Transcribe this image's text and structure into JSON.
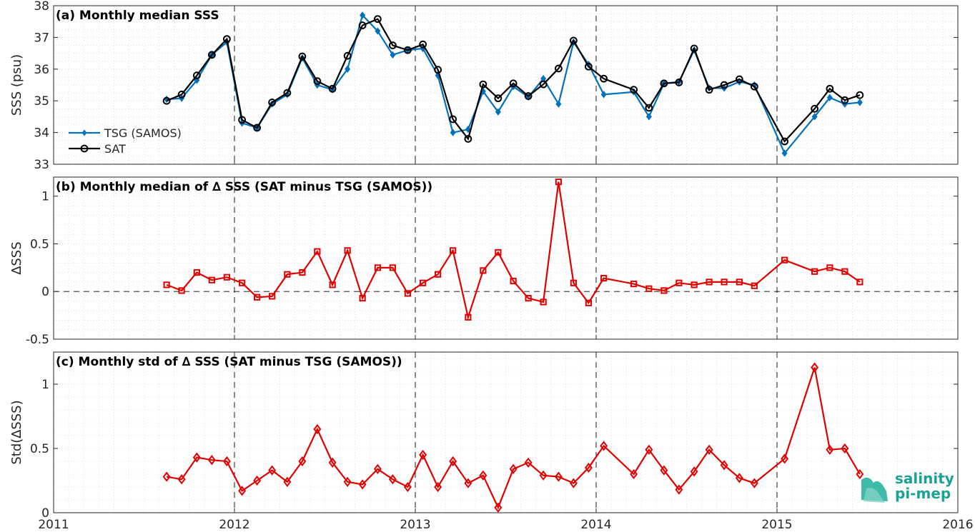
{
  "colors": {
    "tsg": "#0072bd",
    "sat": "#000000",
    "delta": "#e00000",
    "logo": "#1aa394"
  },
  "logo": {
    "line1": "salinity",
    "line2": "pi-mep"
  },
  "chart_data": [
    {
      "type": "line",
      "title": "(a) Monthly median SSS",
      "ylabel": "SSS (psu)",
      "xlim": [
        2011,
        2016
      ],
      "ylim": [
        33,
        38
      ],
      "yticks": [
        "33",
        "34",
        "35",
        "36",
        "37",
        "38"
      ],
      "xticks": [
        "2011",
        "2012",
        "2013",
        "2014",
        "2015",
        "2016"
      ],
      "grid": true,
      "legend_position": "lower-left",
      "x": [
        2011.625,
        2011.708,
        2011.792,
        2011.875,
        2011.958,
        2012.042,
        2012.125,
        2012.208,
        2012.292,
        2012.375,
        2012.458,
        2012.542,
        2012.625,
        2012.708,
        2012.792,
        2012.875,
        2012.958,
        2013.042,
        2013.125,
        2013.208,
        2013.292,
        2013.375,
        2013.458,
        2013.542,
        2013.625,
        2013.708,
        2013.792,
        2013.875,
        2013.958,
        2014.042,
        2014.208,
        2014.292,
        2014.375,
        2014.458,
        2014.542,
        2014.625,
        2014.708,
        2014.792,
        2014.875,
        2015.042,
        2015.208,
        2015.292,
        2015.375,
        2015.458
      ],
      "series": [
        {
          "name": "TSG (SAMOS)",
          "marker": "diamond",
          "values": [
            35.05,
            35.08,
            35.65,
            36.45,
            36.85,
            34.3,
            34.15,
            34.9,
            35.2,
            36.35,
            35.5,
            35.35,
            36.0,
            37.7,
            37.2,
            36.45,
            36.6,
            36.65,
            35.8,
            34.0,
            34.1,
            35.3,
            34.65,
            35.45,
            35.12,
            35.7,
            34.9,
            36.85,
            36.15,
            35.2,
            35.28,
            34.5,
            35.55,
            35.6,
            36.6,
            35.4,
            35.4,
            35.6,
            35.5,
            33.35,
            34.5,
            35.1,
            34.9,
            34.95
          ]
        },
        {
          "name": "SAT",
          "marker": "circle",
          "values": [
            35.0,
            35.2,
            35.8,
            36.45,
            36.95,
            34.4,
            34.15,
            34.95,
            35.25,
            36.4,
            35.62,
            35.38,
            36.42,
            37.38,
            37.58,
            36.75,
            36.6,
            36.78,
            35.98,
            34.42,
            33.8,
            35.52,
            35.08,
            35.55,
            35.15,
            35.52,
            36.02,
            36.9,
            36.08,
            35.7,
            35.35,
            34.78,
            35.55,
            35.58,
            36.65,
            35.35,
            35.5,
            35.68,
            35.45,
            33.72,
            34.75,
            35.38,
            35.02,
            35.18
          ]
        }
      ]
    },
    {
      "type": "line",
      "title": "(b) Monthly median of ∆ SSS (SAT minus TSG (SAMOS))",
      "ylabel": "∆SSS",
      "xlim": [
        2011,
        2016
      ],
      "ylim": [
        -0.5,
        1.2
      ],
      "yticks": [
        "-0.5",
        "0",
        "0.5",
        "1"
      ],
      "grid": true,
      "x": [
        2011.625,
        2011.708,
        2011.792,
        2011.875,
        2011.958,
        2012.042,
        2012.125,
        2012.208,
        2012.292,
        2012.375,
        2012.458,
        2012.542,
        2012.625,
        2012.708,
        2012.792,
        2012.875,
        2012.958,
        2013.042,
        2013.125,
        2013.208,
        2013.292,
        2013.375,
        2013.458,
        2013.542,
        2013.625,
        2013.708,
        2013.792,
        2013.875,
        2013.958,
        2014.042,
        2014.208,
        2014.292,
        2014.375,
        2014.458,
        2014.542,
        2014.625,
        2014.708,
        2014.792,
        2014.875,
        2015.042,
        2015.208,
        2015.292,
        2015.375,
        2015.458
      ],
      "series": [
        {
          "name": "",
          "marker": "square",
          "values": [
            0.07,
            0.01,
            0.2,
            0.12,
            0.15,
            0.09,
            -0.06,
            -0.05,
            0.18,
            0.2,
            0.42,
            0.07,
            0.43,
            -0.07,
            0.25,
            0.25,
            -0.02,
            0.09,
            0.18,
            0.43,
            -0.27,
            0.22,
            0.41,
            0.11,
            -0.07,
            -0.11,
            1.15,
            0.09,
            -0.12,
            0.14,
            0.08,
            0.03,
            0.01,
            0.09,
            0.07,
            0.1,
            0.1,
            0.1,
            0.06,
            0.33,
            0.21,
            0.25,
            0.21,
            0.1
          ]
        }
      ]
    },
    {
      "type": "line",
      "title": "(c) Monthly std of ∆ SSS (SAT minus TSG (SAMOS))",
      "ylabel": "Std(∆SSS)",
      "xlim": [
        2011,
        2016
      ],
      "ylim": [
        0,
        1.25
      ],
      "yticks": [
        "0",
        "0.5",
        "1"
      ],
      "grid": true,
      "x": [
        2011.625,
        2011.708,
        2011.792,
        2011.875,
        2011.958,
        2012.042,
        2012.125,
        2012.208,
        2012.292,
        2012.375,
        2012.458,
        2012.542,
        2012.625,
        2012.708,
        2012.792,
        2012.875,
        2012.958,
        2013.042,
        2013.125,
        2013.208,
        2013.292,
        2013.375,
        2013.458,
        2013.542,
        2013.625,
        2013.708,
        2013.792,
        2013.875,
        2013.958,
        2014.042,
        2014.208,
        2014.292,
        2014.375,
        2014.458,
        2014.542,
        2014.625,
        2014.708,
        2014.792,
        2014.875,
        2015.042,
        2015.208,
        2015.292,
        2015.375,
        2015.458
      ],
      "series": [
        {
          "name": "",
          "marker": "diamond-open",
          "values": [
            0.28,
            0.26,
            0.43,
            0.41,
            0.4,
            0.17,
            0.25,
            0.33,
            0.24,
            0.4,
            0.65,
            0.39,
            0.24,
            0.22,
            0.34,
            0.26,
            0.2,
            0.45,
            0.2,
            0.4,
            0.23,
            0.29,
            0.04,
            0.34,
            0.39,
            0.29,
            0.28,
            0.23,
            0.35,
            0.52,
            0.3,
            0.49,
            0.33,
            0.18,
            0.32,
            0.49,
            0.37,
            0.27,
            0.23,
            0.42,
            1.13,
            0.49,
            0.5,
            0.3
          ]
        }
      ]
    }
  ]
}
